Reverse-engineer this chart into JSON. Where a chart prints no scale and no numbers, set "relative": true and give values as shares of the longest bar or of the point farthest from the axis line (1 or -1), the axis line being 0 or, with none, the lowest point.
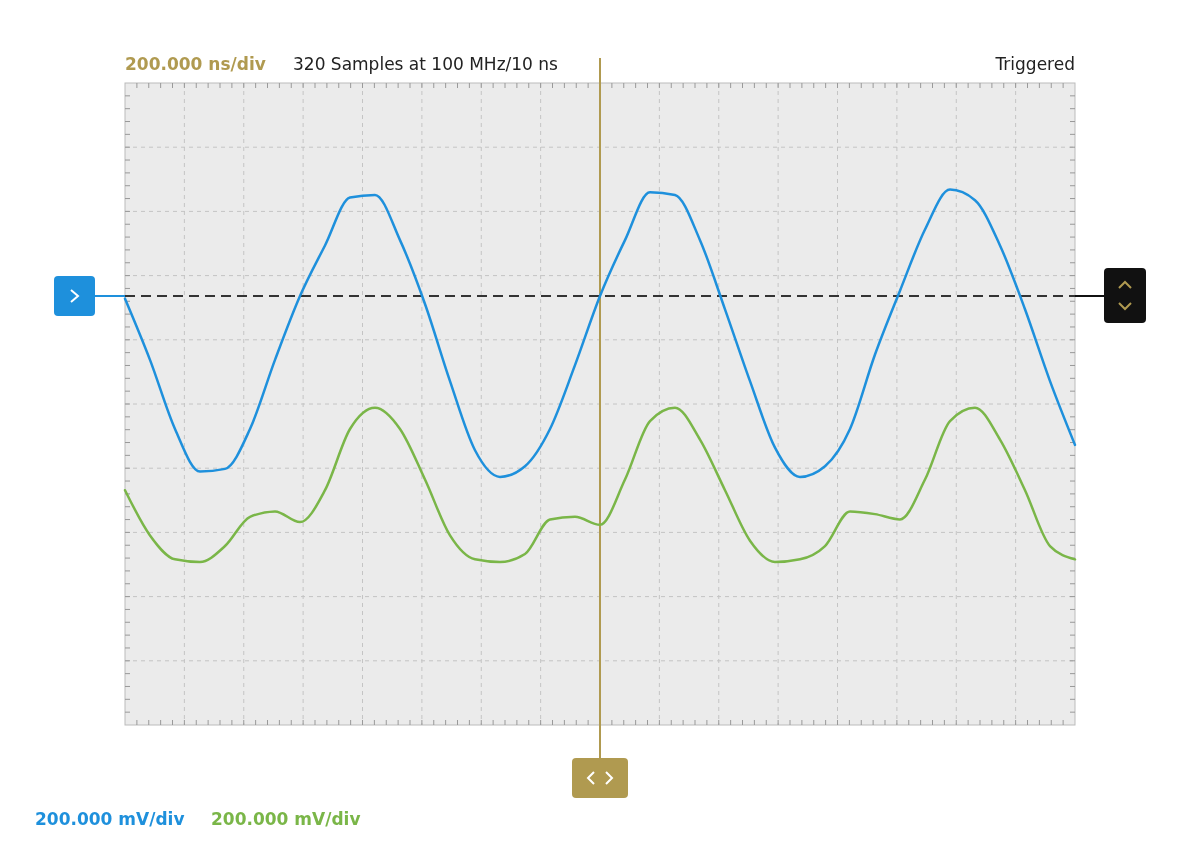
{
  "chart_data": {
    "type": "line",
    "relative": true,
    "grid": true,
    "legend": "bottom left",
    "line_style": "solid",
    "marker": "none",
    "annotations": [
      "200.000 ns/div",
      "320 Samples at 100 MHz/10 ns",
      "Triggered"
    ],
    "categories": [
      null,
      null,
      null,
      null,
      null,
      null,
      null,
      null,
      null,
      null,
      null,
      null,
      null,
      null,
      null,
      null,
      null,
      null,
      null,
      null,
      null,
      null,
      null,
      null,
      null,
      null,
      null,
      null,
      null,
      null,
      null,
      null,
      null,
      null,
      null,
      null,
      null,
      null,
      null
    ],
    "ref_lines": [
      {
        "axis": "y",
        "value": 0,
        "color": "#333333",
        "line_style": "dashed"
      }
    ],
    "series": [
      {
        "name": "200.000 mV/div",
        "color": "#1e90dc",
        "values": [
          -0.01,
          -0.24,
          -0.5,
          -0.66,
          -0.65,
          -0.5,
          -0.24,
          0,
          0.19,
          0.37,
          0.38,
          0.21,
          -0.03,
          -0.32,
          -0.58,
          -0.68,
          -0.64,
          -0.5,
          -0.26,
          0,
          0.21,
          0.39,
          0.38,
          0.21,
          -0.05,
          -0.32,
          -0.57,
          -0.68,
          -0.64,
          -0.5,
          -0.22,
          0.02,
          0.25,
          0.4,
          0.36,
          0.19,
          -0.05,
          -0.32,
          -0.56
        ]
      },
      {
        "name": "200.000 mV/div",
        "color": "#7ab648",
        "values": [
          -0.73,
          -0.9,
          -0.99,
          -1,
          -0.94,
          -0.83,
          -0.81,
          -0.85,
          -0.73,
          -0.5,
          -0.42,
          -0.5,
          -0.69,
          -0.9,
          -0.99,
          -1,
          -0.97,
          -0.84,
          -0.83,
          -0.86,
          -0.69,
          -0.47,
          -0.42,
          -0.54,
          -0.73,
          -0.92,
          -1,
          -0.99,
          -0.94,
          -0.81,
          -0.82,
          -0.84,
          -0.69,
          -0.47,
          -0.42,
          -0.54,
          -0.73,
          -0.94,
          -0.99
        ]
      }
    ]
  }
}
